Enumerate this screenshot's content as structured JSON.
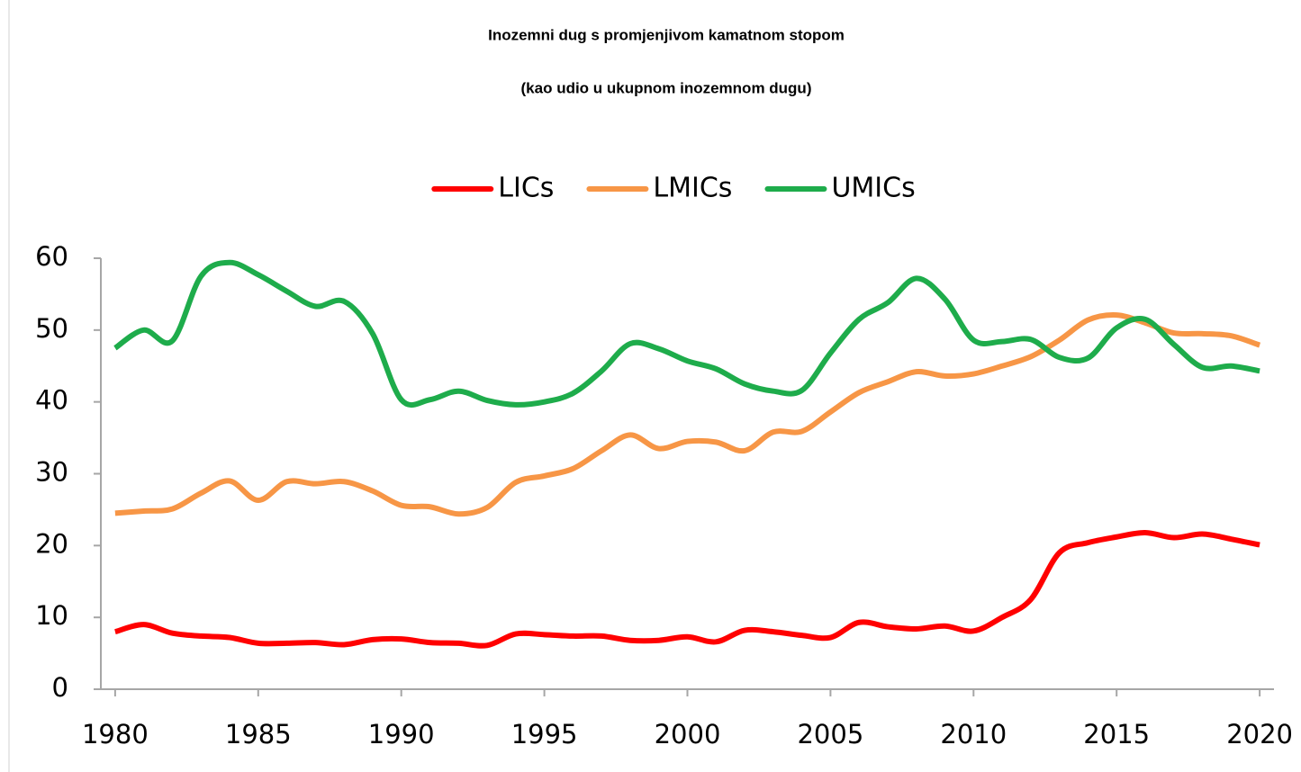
{
  "chart_data": {
    "type": "line",
    "title": "Inozemni dug s promjenjivom kamatnom stopom",
    "subtitle": "(kao udio u ukupnom inozemnom dugu)",
    "x": [
      1980,
      1981,
      1982,
      1983,
      1984,
      1985,
      1986,
      1987,
      1988,
      1989,
      1990,
      1991,
      1992,
      1993,
      1994,
      1995,
      1996,
      1997,
      1998,
      1999,
      2000,
      2001,
      2002,
      2003,
      2004,
      2005,
      2006,
      2007,
      2008,
      2009,
      2010,
      2011,
      2012,
      2013,
      2014,
      2015,
      2016,
      2017,
      2018,
      2019,
      2020
    ],
    "series": [
      {
        "name": "LICs",
        "color": "#ff0000",
        "values": [
          8,
          9,
          7.8,
          7.4,
          7.2,
          6.4,
          6.4,
          6.5,
          6.2,
          6.9,
          7,
          6.5,
          6.4,
          6.1,
          7.7,
          7.6,
          7.4,
          7.4,
          6.8,
          6.8,
          7.3,
          6.6,
          8.2,
          8,
          7.5,
          7.2,
          9.3,
          8.7,
          8.4,
          8.8,
          8.1,
          10,
          12.5,
          19,
          20.4,
          21.2,
          21.8,
          21.1,
          21.6,
          20.9,
          20.1
        ]
      },
      {
        "name": "LMICs",
        "color": "#f79646",
        "values": [
          24.5,
          24.8,
          25.1,
          27.3,
          29,
          26.3,
          28.9,
          28.6,
          28.9,
          27.6,
          25.6,
          25.4,
          24.4,
          25.3,
          28.8,
          29.7,
          30.7,
          33.2,
          35.4,
          33.5,
          34.5,
          34.4,
          33.2,
          35.8,
          35.9,
          38.6,
          41.3,
          42.8,
          44.2,
          43.6,
          43.9,
          45,
          46.3,
          48.6,
          51.4,
          52.1,
          51,
          49.6,
          49.5,
          49.2,
          47.9
        ]
      },
      {
        "name": "UMICs",
        "color": "#1eac4b",
        "values": [
          47.5,
          50,
          48.5,
          57.5,
          59.4,
          57.7,
          55.4,
          53.3,
          54,
          49.5,
          40.3,
          40.3,
          41.5,
          40.2,
          39.6,
          40,
          41.2,
          44.3,
          48.1,
          47.4,
          45.7,
          44.6,
          42.5,
          41.5,
          41.6,
          46.8,
          51.5,
          53.8,
          57.2,
          54.3,
          48.6,
          48.4,
          48.7,
          46.2,
          46.1,
          50.3,
          51.5,
          48,
          44.8,
          45,
          44.3
        ]
      }
    ],
    "xlim": [
      1979.5,
      2020.5
    ],
    "xticks": [
      1980,
      1985,
      1990,
      1995,
      2000,
      2005,
      2010,
      2015,
      2020
    ],
    "ylim": [
      0,
      60
    ],
    "yticks": [
      0,
      10,
      20,
      30,
      40,
      50,
      60
    ],
    "legend": "top"
  }
}
